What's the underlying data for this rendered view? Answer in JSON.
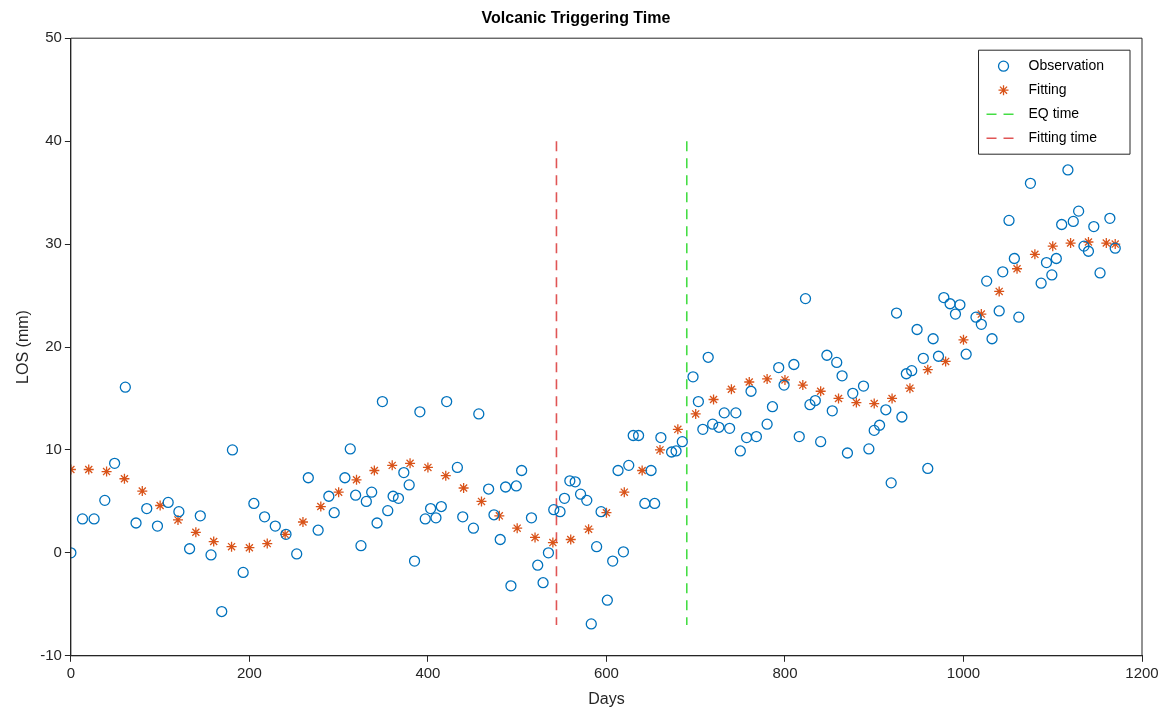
{
  "chart_data": {
    "type": "scatter",
    "title": "Volcanic Triggering Time",
    "xlabel": "Days",
    "ylabel": "LOS (mm)",
    "xlim": [
      0,
      1200
    ],
    "xticks": [
      0,
      200,
      400,
      600,
      800,
      1000,
      1200
    ],
    "ylim": [
      -10,
      50
    ],
    "yticks": [
      -10,
      0,
      10,
      20,
      30,
      40,
      50
    ],
    "grid": false,
    "legend": "top right",
    "series": [
      {
        "name": "Observation",
        "type": "scatter",
        "marker": "circle",
        "color": "#0072bd",
        "x": [
          0,
          13,
          26,
          38,
          49,
          61,
          73,
          85,
          97,
          109,
          121,
          133,
          145,
          157,
          169,
          181,
          193,
          205,
          217,
          229,
          241,
          253,
          266,
          277,
          289,
          295,
          307,
          313,
          319,
          325,
          331,
          337,
          343,
          349,
          355,
          361,
          367,
          373,
          379,
          385,
          391,
          397,
          403,
          409,
          415,
          421,
          433,
          439,
          451,
          457,
          468,
          474,
          481,
          487,
          493,
          499,
          505,
          516,
          523,
          529,
          535,
          541,
          548,
          553,
          559,
          565,
          571,
          578,
          583,
          589,
          594,
          601,
          607,
          613,
          619,
          625,
          630,
          636,
          643,
          650,
          654,
          661,
          673,
          678,
          685,
          697,
          703,
          708,
          714,
          719,
          726,
          732,
          738,
          745,
          750,
          757,
          762,
          768,
          780,
          786,
          793,
          799,
          810,
          816,
          823,
          828,
          834,
          840,
          847,
          853,
          858,
          864,
          870,
          876,
          888,
          894,
          900,
          906,
          913,
          919,
          925,
          931,
          936,
          942,
          948,
          955,
          960,
          966,
          972,
          978,
          985,
          991,
          996,
          1003,
          1014,
          1020,
          1026,
          1032,
          1040,
          1044,
          1051,
          1057,
          1062,
          1075,
          1087,
          1093,
          1099,
          1104,
          1110,
          1117,
          1123,
          1129,
          1135,
          1140,
          1146,
          1153,
          1164,
          1170
        ],
        "values": [
          0,
          3.3,
          3.3,
          5.1,
          8.7,
          16.1,
          2.9,
          4.3,
          2.6,
          4.9,
          4,
          0.4,
          3.6,
          -0.2,
          -5.7,
          10,
          -1.9,
          4.8,
          3.5,
          2.6,
          1.8,
          -0.1,
          7.3,
          2.2,
          5.5,
          3.9,
          7.3,
          10.1,
          5.6,
          0.7,
          5,
          5.9,
          2.9,
          14.7,
          4.1,
          5.5,
          5.3,
          7.8,
          6.6,
          -0.8,
          13.7,
          3.3,
          4.3,
          3.4,
          4.5,
          14.7,
          8.3,
          3.5,
          2.4,
          13.5,
          6.2,
          3.7,
          1.3,
          6.4,
          -3.2,
          6.5,
          8,
          3.4,
          -1.2,
          -2.9,
          0,
          4.2,
          4,
          5.3,
          7,
          6.9,
          5.7,
          5.1,
          -6.9,
          0.6,
          4,
          -4.6,
          -0.8,
          8,
          0.1,
          8.5,
          11.4,
          11.4,
          4.8,
          8,
          4.8,
          11.2,
          9.8,
          9.9,
          10.8,
          17.1,
          14.7,
          12,
          19,
          12.5,
          12.2,
          13.6,
          12.1,
          13.6,
          9.9,
          11.2,
          15.7,
          11.3,
          12.5,
          14.2,
          18,
          16.3,
          18.3,
          11.3,
          24.7,
          14.4,
          14.8,
          10.8,
          19.2,
          13.8,
          18.5,
          17.2,
          9.7,
          15.5,
          16.2,
          10.1,
          11.9,
          12.4,
          13.9,
          6.8,
          23.3,
          13.2,
          17.4,
          17.7,
          21.7,
          18.9,
          8.2,
          20.8,
          19.1,
          24.8,
          24.2,
          23.2,
          24.1,
          19.3,
          22.9,
          22.2,
          26.4,
          20.8,
          23.5,
          27.3,
          32.3,
          28.6,
          22.9,
          35.9,
          26.2,
          28.2,
          27,
          28.6,
          31.9,
          37.2,
          32.2,
          33.2,
          29.8,
          29.3,
          31.7,
          27.2,
          32.5,
          29.6
        ]
      },
      {
        "name": "Fitting",
        "type": "scatter",
        "marker": "cross",
        "color": "#d95319",
        "x": [
          0,
          20,
          40,
          60,
          80,
          100,
          120,
          140,
          160,
          180,
          200,
          220,
          240,
          260,
          280,
          300,
          320,
          340,
          360,
          380,
          400,
          420,
          440,
          460,
          480,
          500,
          520,
          540,
          560,
          580,
          600,
          620,
          640,
          660,
          680,
          700,
          720,
          740,
          760,
          780,
          800,
          820,
          840,
          860,
          880,
          900,
          920,
          940,
          960,
          980,
          1000,
          1020,
          1040,
          1060,
          1080,
          1100,
          1120,
          1140,
          1160,
          1170
        ],
        "values": [
          8.1,
          8.1,
          7.9,
          7.2,
          6.0,
          4.6,
          3.2,
          2.0,
          1.1,
          0.6,
          0.5,
          0.9,
          1.8,
          3.0,
          4.5,
          5.9,
          7.1,
          8.0,
          8.5,
          8.7,
          8.3,
          7.5,
          6.3,
          5.0,
          3.6,
          2.4,
          1.5,
          1.0,
          1.3,
          2.3,
          3.9,
          5.9,
          8.0,
          10.0,
          12.0,
          13.5,
          14.9,
          15.9,
          16.6,
          16.9,
          16.8,
          16.3,
          15.7,
          15.0,
          14.6,
          14.5,
          15.0,
          16.0,
          17.8,
          18.6,
          20.7,
          23.2,
          25.4,
          27.6,
          29.0,
          29.8,
          30.1,
          30.2,
          30.1,
          30.0
        ]
      },
      {
        "name": "EQ time",
        "type": "line",
        "marker": "none",
        "line_style": "dashed",
        "color": "#44dd44",
        "x": [
          690,
          690
        ],
        "values": [
          40,
          -7
        ]
      },
      {
        "name": "Fitting time",
        "type": "line",
        "marker": "none",
        "line_style": "dashed",
        "color": "#e05555",
        "x": [
          544,
          544
        ],
        "values": [
          40,
          -7
        ]
      }
    ]
  }
}
